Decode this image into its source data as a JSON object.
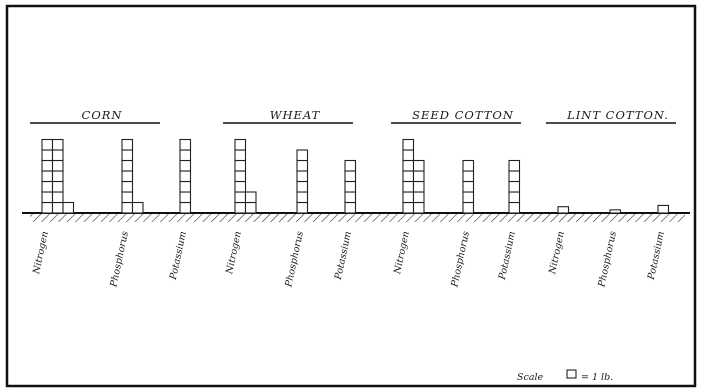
{
  "chart_data": {
    "type": "bar",
    "units": "1 lb per square",
    "groups": [
      {
        "title": "CORN",
        "bars": [
          {
            "label": "Nitrogen",
            "value": 15
          },
          {
            "label": "Phosphorus",
            "value": 8
          },
          {
            "label": "Potassium",
            "value": 7
          }
        ]
      },
      {
        "title": "WHEAT",
        "bars": [
          {
            "label": "Nitrogen",
            "value": 9
          },
          {
            "label": "Phosphorus",
            "value": 6
          },
          {
            "label": "Potassium",
            "value": 5
          }
        ]
      },
      {
        "title": "SEED COTTON",
        "bars": [
          {
            "label": "Nitrogen",
            "value": 12
          },
          {
            "label": "Phosphorus",
            "value": 5
          },
          {
            "label": "Potassium",
            "value": 5
          }
        ]
      },
      {
        "title": "LINT COTTON.",
        "bars": [
          {
            "label": "Nitrogen",
            "value": 0.5
          },
          {
            "label": "Phosphorus",
            "value": 0.25
          },
          {
            "label": "Potassium",
            "value": 0.6
          }
        ]
      }
    ],
    "legend": {
      "text": "Scale",
      "unit_text": "= 1 lb."
    }
  },
  "colors": {
    "ink": "#222222",
    "paper": "#ffffff"
  }
}
